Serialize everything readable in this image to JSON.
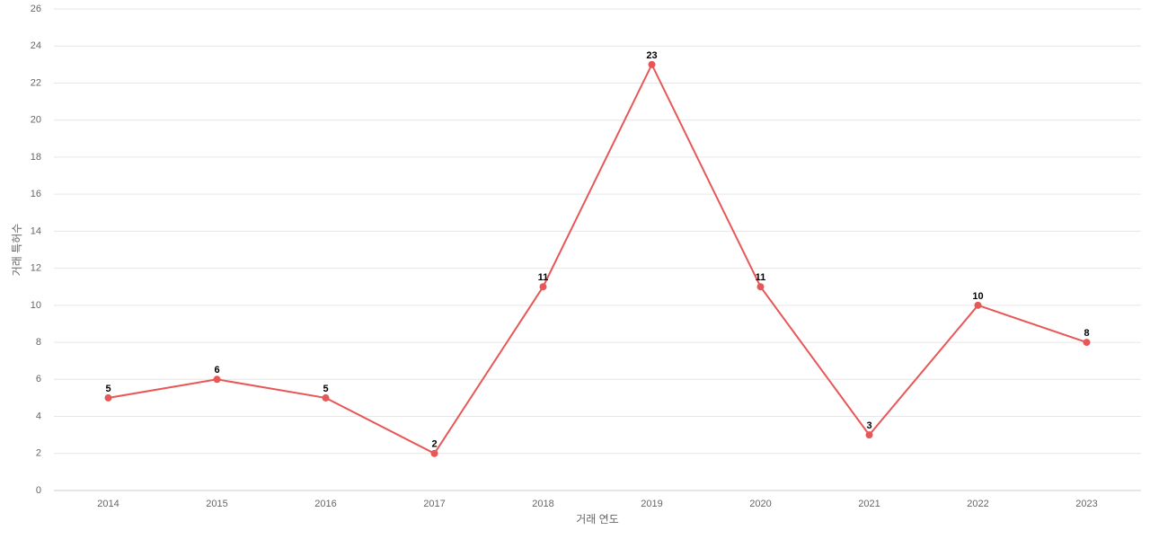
{
  "chart_data": {
    "type": "line",
    "x_label": "거래 연도",
    "y_label": "거래 특허수",
    "categories": [
      "2014",
      "2015",
      "2016",
      "2017",
      "2018",
      "2019",
      "2020",
      "2021",
      "2022",
      "2023"
    ],
    "values": [
      5,
      6,
      5,
      2,
      11,
      23,
      11,
      3,
      10,
      8
    ],
    "color": "#e85757",
    "ylim": [
      0,
      26
    ],
    "yticks": [
      0,
      2,
      4,
      6,
      8,
      10,
      12,
      14,
      16,
      18,
      20,
      22,
      24,
      26
    ],
    "grid": true,
    "data_labels": true
  }
}
